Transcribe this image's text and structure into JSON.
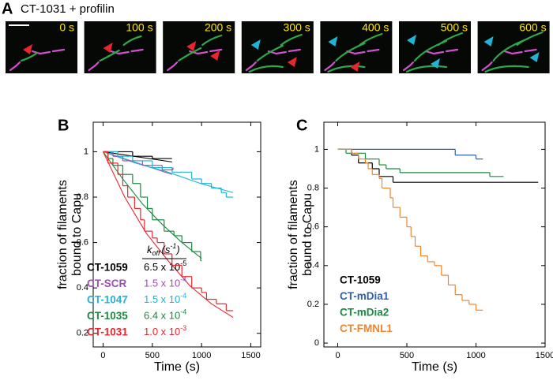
{
  "panel_a": {
    "panel": "A",
    "title": "CT-1031 + profilin",
    "frames": [
      "0 s",
      "100 s",
      "200 s",
      "300 s",
      "400 s",
      "500 s",
      "600 s"
    ]
  },
  "chart_data": [
    {
      "type": "line",
      "step": true,
      "panel": "B",
      "xlabel": "Time (s)",
      "ylabel": [
        "fraction of filaments",
        "bound to Capu"
      ],
      "xlim": [
        -100,
        1600
      ],
      "ylim": [
        0.14,
        1.13
      ],
      "xticks": [
        0,
        500,
        1000,
        1500
      ],
      "yticks": [
        0.2,
        0.4,
        0.6,
        0.8,
        1
      ],
      "legend_title": {
        "symbol": "k",
        "sub": "off",
        "unit": "(s",
        "sup": "-1",
        "close": ")"
      },
      "series": [
        {
          "name": "CT-1059",
          "color": "#000000",
          "koff": {
            "base": "6.5 x 10",
            "exp": "-5"
          },
          "x": [
            0,
            300,
            500,
            700
          ],
          "values": [
            1,
            0.98,
            0.97,
            0.97
          ]
        },
        {
          "name": "CT-SCR",
          "color": "#9b4fb5",
          "koff": {
            "base": "1.5 x 10",
            "exp": "-4"
          },
          "x": [
            0,
            100,
            200,
            400,
            600,
            710
          ],
          "values": [
            1,
            0.98,
            0.96,
            0.94,
            0.92,
            0.93
          ]
        },
        {
          "name": "CT-1047",
          "color": "#1fb3d6",
          "koff": {
            "base": "1.5 x 10",
            "exp": "-4"
          },
          "x": [
            0,
            150,
            300,
            500,
            700,
            900,
            1000,
            1100,
            1200,
            1250,
            1320
          ],
          "values": [
            1,
            0.98,
            0.96,
            0.93,
            0.91,
            0.88,
            0.86,
            0.84,
            0.82,
            0.8,
            0.8
          ]
        },
        {
          "name": "CT-1035",
          "color": "#1a8a3f",
          "koff": {
            "base": "6.4 x 10",
            "exp": "-4"
          },
          "x": [
            0,
            50,
            100,
            200,
            300,
            380,
            450,
            500,
            620,
            720,
            800,
            900,
            990,
            1000
          ],
          "values": [
            1,
            0.97,
            0.94,
            0.9,
            0.86,
            0.8,
            0.75,
            0.7,
            0.65,
            0.63,
            0.6,
            0.56,
            0.52,
            0.52
          ]
        },
        {
          "name": "CT-1031",
          "color": "#e8262b",
          "koff": {
            "base": "1.0 x 10",
            "exp": "-3"
          },
          "x": [
            0,
            50,
            150,
            200,
            250,
            320,
            380,
            420,
            500,
            550,
            620,
            700,
            800,
            900,
            1000,
            1050,
            1150,
            1250,
            1320
          ],
          "values": [
            1,
            0.95,
            0.9,
            0.85,
            0.8,
            0.75,
            0.7,
            0.65,
            0.62,
            0.6,
            0.55,
            0.5,
            0.45,
            0.4,
            0.38,
            0.35,
            0.33,
            0.3,
            0.3
          ]
        }
      ],
      "fits": [
        {
          "color": "#000000",
          "x": [
            0,
            700
          ],
          "values": [
            1,
            0.955
          ]
        },
        {
          "color": "#9b4fb5",
          "x": [
            0,
            350,
            700
          ],
          "values": [
            1,
            0.95,
            0.9
          ]
        },
        {
          "color": "#1fb3d6",
          "x": [
            0,
            330,
            660,
            990,
            1320
          ],
          "values": [
            1,
            0.95,
            0.91,
            0.86,
            0.82
          ]
        },
        {
          "color": "#1a8a3f",
          "x": [
            0,
            200,
            400,
            600,
            800,
            1000
          ],
          "values": [
            1,
            0.88,
            0.77,
            0.68,
            0.6,
            0.53
          ]
        },
        {
          "color": "#e8262b",
          "x": [
            0,
            220,
            440,
            660,
            880,
            1100,
            1320
          ],
          "values": [
            1,
            0.8,
            0.64,
            0.52,
            0.41,
            0.33,
            0.27
          ]
        }
      ]
    },
    {
      "type": "line",
      "step": true,
      "panel": "C",
      "xlabel": "Time (s)",
      "ylabel": [
        "fraction of filaments",
        "bound to Capu"
      ],
      "xlim": [
        -100,
        1500
      ],
      "ylim": [
        -0.02,
        1.14
      ],
      "xticks": [
        0,
        500,
        1000,
        1500
      ],
      "yticks": [
        0,
        0.2,
        0.4,
        0.6,
        0.8,
        1
      ],
      "series": [
        {
          "name": "CT-1059",
          "color": "#000000",
          "x": [
            0,
            100,
            150,
            250,
            300,
            400,
            1450
          ],
          "values": [
            1,
            0.97,
            0.93,
            0.9,
            0.86,
            0.83,
            0.83
          ]
        },
        {
          "name": "CT-mDia1",
          "color": "#2f5fae",
          "x": [
            0,
            850,
            1000,
            1050
          ],
          "values": [
            1,
            0.97,
            0.95,
            0.95
          ]
        },
        {
          "name": "CT-mDia2",
          "color": "#1a8a3f",
          "x": [
            0,
            60,
            200,
            300,
            350,
            450,
            1100,
            1200
          ],
          "values": [
            1,
            0.98,
            0.95,
            0.92,
            0.9,
            0.88,
            0.86,
            0.86
          ]
        },
        {
          "name": "CT-FMNL1",
          "color": "#f0842c",
          "x": [
            0,
            100,
            150,
            200,
            220,
            250,
            300,
            320,
            380,
            400,
            450,
            500,
            530,
            560,
            600,
            650,
            700,
            750,
            800,
            850,
            900,
            950,
            1000,
            1050
          ],
          "values": [
            1,
            0.98,
            0.95,
            0.93,
            0.9,
            0.87,
            0.85,
            0.8,
            0.75,
            0.7,
            0.65,
            0.6,
            0.55,
            0.5,
            0.45,
            0.42,
            0.4,
            0.35,
            0.3,
            0.25,
            0.22,
            0.2,
            0.17,
            0.17
          ]
        }
      ]
    }
  ]
}
